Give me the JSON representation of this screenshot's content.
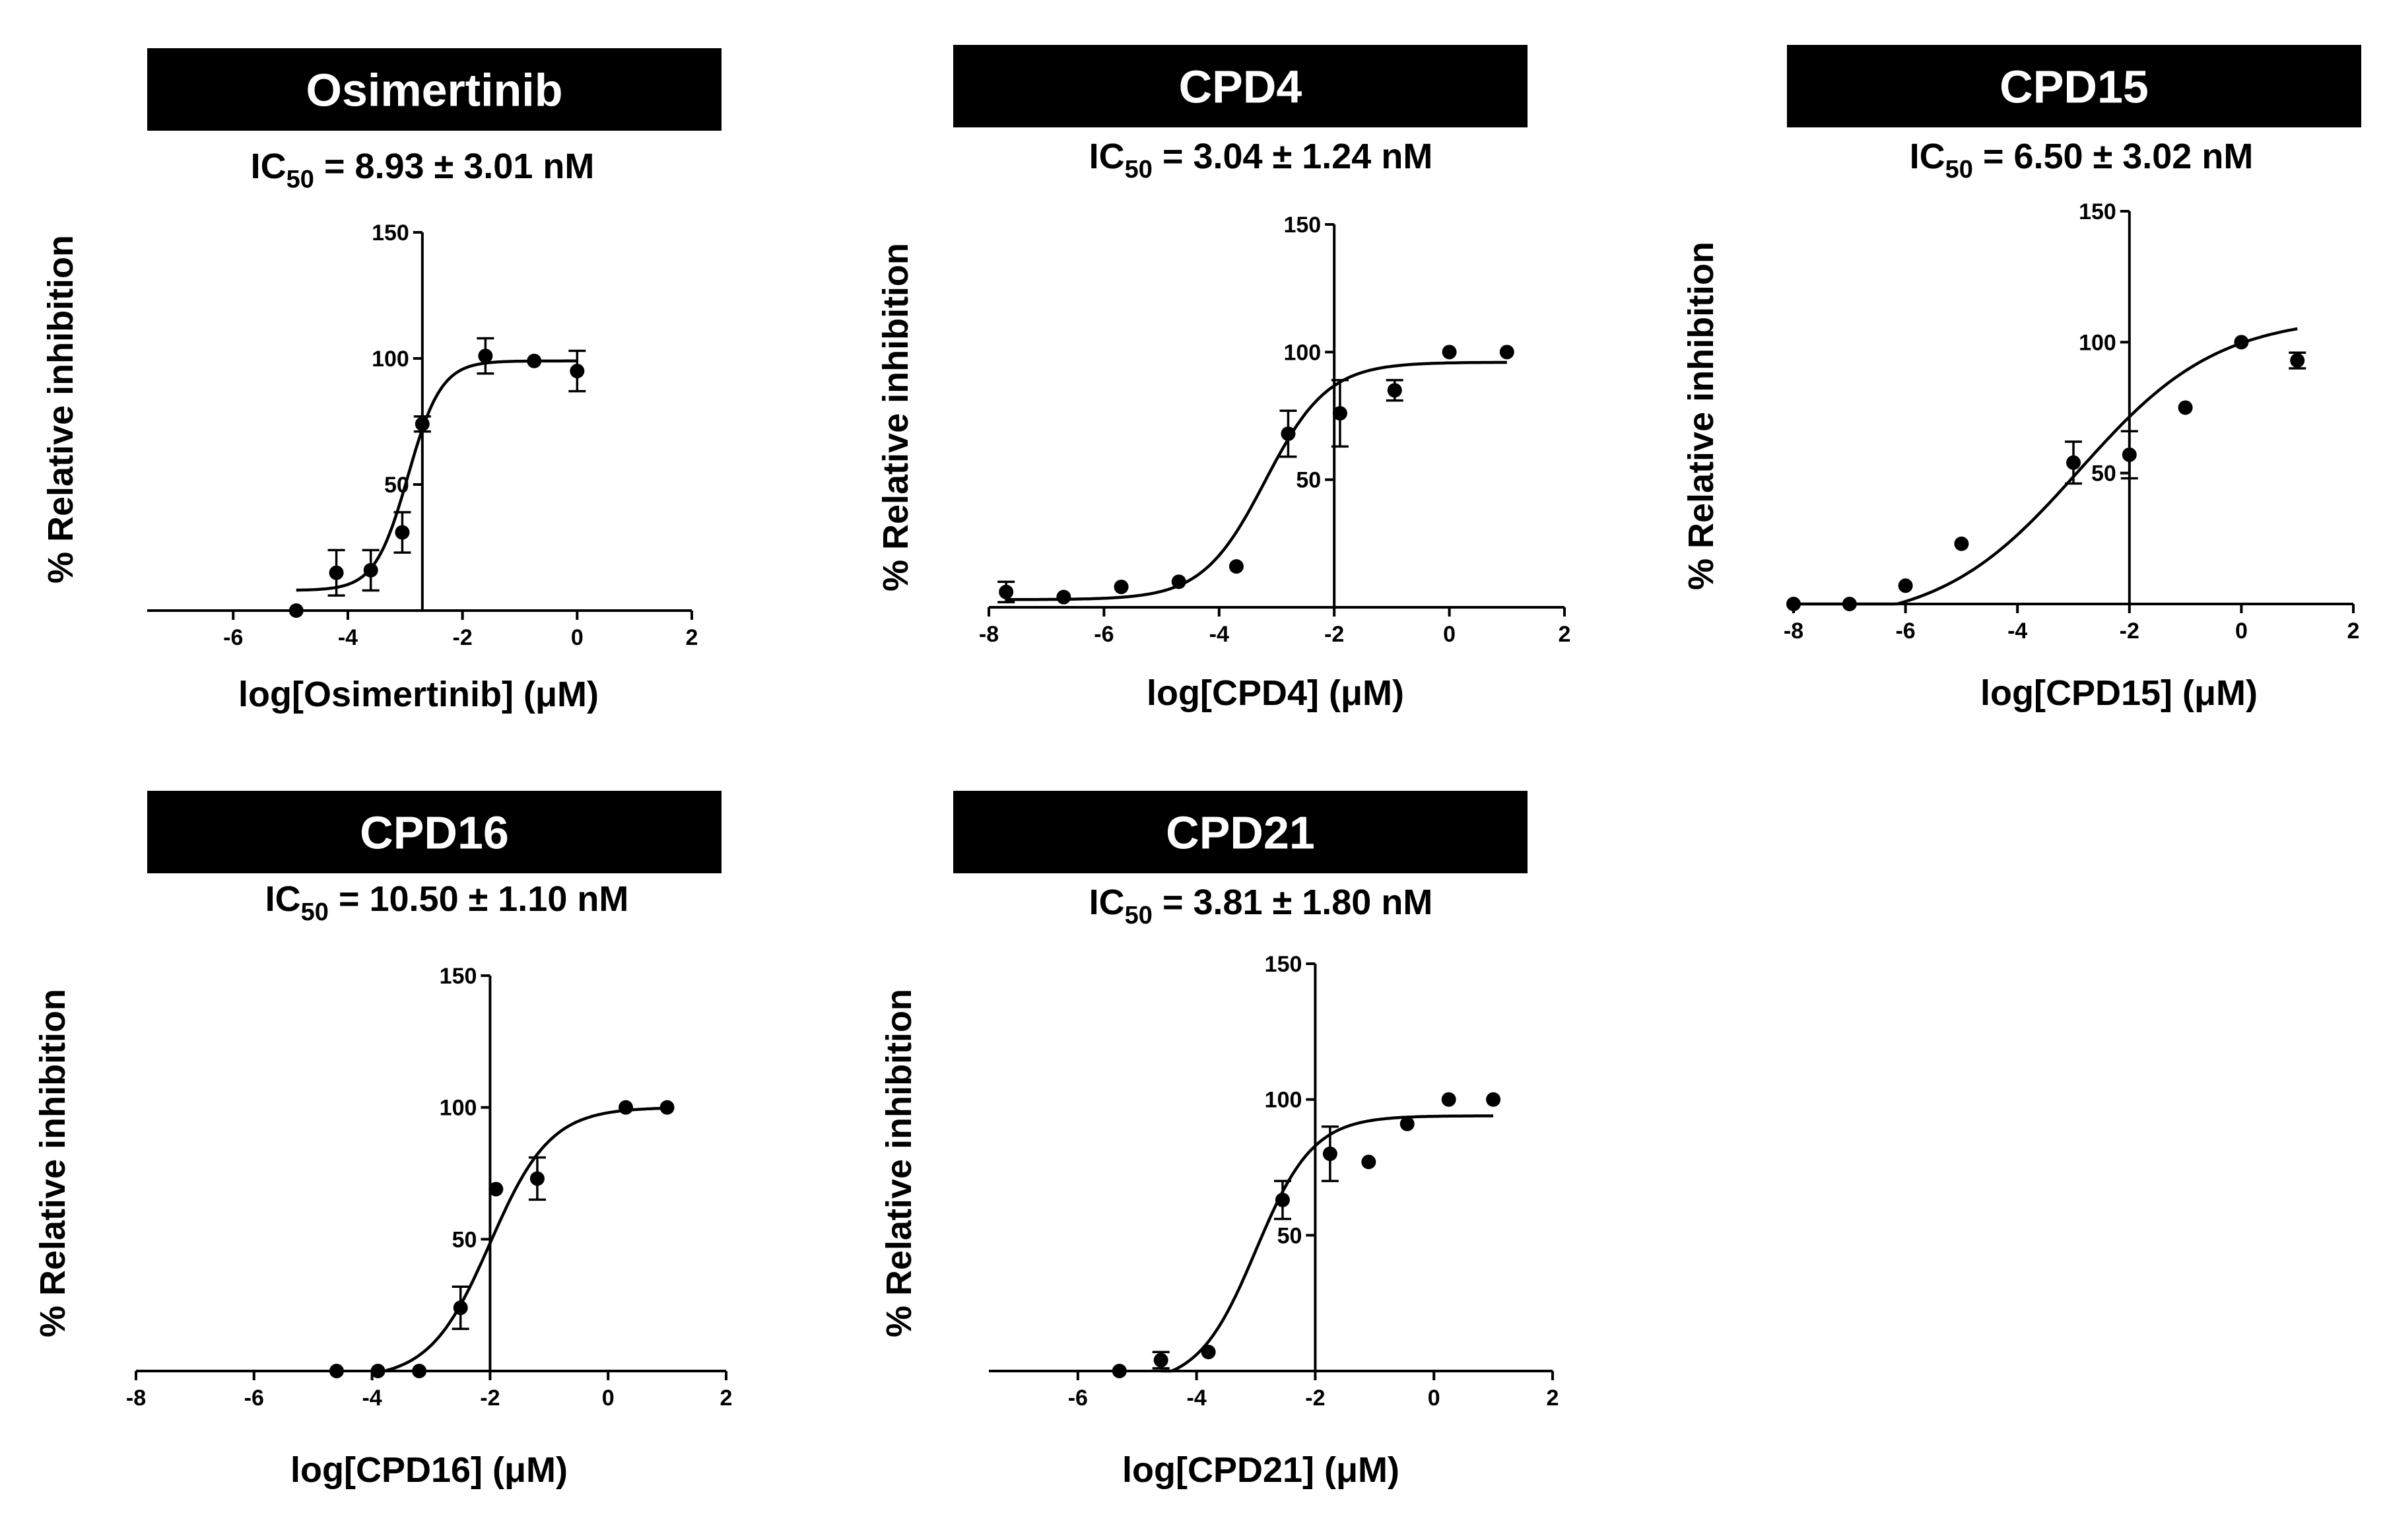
{
  "figure": {
    "colors": {
      "banner": "#000000",
      "banner_text": "#ffffff",
      "ink": "#000000"
    }
  },
  "chart_data": [
    {
      "type": "scatter",
      "title": "Osimertinib",
      "ic50": {
        "prefix": "IC",
        "sub": "50",
        "suffix": " = 8.93 ± 3.01 nM"
      },
      "xlabel": "log[Osimertinib] (μM)",
      "ylabel": "% Relative inhibition",
      "xlim": [
        -7.5,
        2
      ],
      "ylim": [
        0,
        150
      ],
      "x_ticks": [
        -6,
        -4,
        -2,
        0,
        2
      ],
      "y_ticks": [
        50,
        100,
        150
      ],
      "y_axis_at_x": -2.7,
      "fit": {
        "bottom": 8,
        "top": 99,
        "logEC50": -2.95,
        "hill": 1.5,
        "x_range": [
          -4.9,
          0
        ]
      },
      "points": [
        {
          "x": -4.9,
          "y": 0,
          "err": 0
        },
        {
          "x": -4.2,
          "y": 15,
          "err": 9
        },
        {
          "x": -3.6,
          "y": 16,
          "err": 8
        },
        {
          "x": -3.05,
          "y": 31,
          "err": 8
        },
        {
          "x": -2.7,
          "y": 74,
          "err": 3
        },
        {
          "x": -1.6,
          "y": 101,
          "err": 7
        },
        {
          "x": -0.75,
          "y": 99,
          "err": 0
        },
        {
          "x": 0,
          "y": 95,
          "err": 8
        }
      ]
    },
    {
      "type": "scatter",
      "title": "CPD4",
      "ic50": {
        "prefix": "IC",
        "sub": "50",
        "suffix": " = 3.04 ± 1.24 nM"
      },
      "xlabel": "log[CPD4] (μM)",
      "ylabel": "% Relative inhibition",
      "xlim": [
        -8,
        2
      ],
      "ylim": [
        0,
        150
      ],
      "x_ticks": [
        -8,
        -6,
        -4,
        -2,
        0,
        2
      ],
      "y_ticks": [
        50,
        100,
        150
      ],
      "y_axis_at_x": -2,
      "fit": {
        "bottom": 3,
        "top": 96,
        "logEC50": -3.2,
        "hill": 0.8,
        "x_range": [
          -7.7,
          1
        ]
      },
      "points": [
        {
          "x": -7.7,
          "y": 6,
          "err": 4
        },
        {
          "x": -6.7,
          "y": 4,
          "err": 0
        },
        {
          "x": -5.7,
          "y": 8,
          "err": 0
        },
        {
          "x": -4.7,
          "y": 10,
          "err": 0
        },
        {
          "x": -3.7,
          "y": 16,
          "err": 0
        },
        {
          "x": -2.8,
          "y": 68,
          "err": 9
        },
        {
          "x": -1.9,
          "y": 76,
          "err": 13
        },
        {
          "x": -0.95,
          "y": 85,
          "err": 4
        },
        {
          "x": 0,
          "y": 100,
          "err": 0
        },
        {
          "x": 1,
          "y": 100,
          "err": 0
        }
      ]
    },
    {
      "type": "scatter",
      "title": "CPD15",
      "ic50": {
        "prefix": "IC",
        "sub": "50",
        "suffix": " = 6.50 ± 3.02 nM"
      },
      "xlabel": "log[CPD15] (μM)",
      "ylabel": "% Relative inhibition",
      "xlim": [
        -8,
        2
      ],
      "ylim": [
        0,
        150
      ],
      "x_ticks": [
        -8,
        -6,
        -4,
        -2,
        0,
        2
      ],
      "y_ticks": [
        50,
        100,
        150
      ],
      "y_axis_at_x": -2,
      "fit": {
        "bottom": -8,
        "top": 110,
        "logEC50": -2.9,
        "hill": 0.35,
        "x_range": [
          -8,
          1
        ]
      },
      "points": [
        {
          "x": -8,
          "y": 0,
          "err": 0
        },
        {
          "x": -7,
          "y": 0,
          "err": 0
        },
        {
          "x": -6,
          "y": 7,
          "err": 0
        },
        {
          "x": -5,
          "y": 23,
          "err": 0
        },
        {
          "x": -3,
          "y": 54,
          "err": 8
        },
        {
          "x": -2,
          "y": 57,
          "err": 9
        },
        {
          "x": -1,
          "y": 75,
          "err": 0
        },
        {
          "x": 0,
          "y": 100,
          "err": 0
        },
        {
          "x": 1,
          "y": 93,
          "err": 3
        }
      ]
    },
    {
      "type": "scatter",
      "title": "CPD16",
      "ic50": {
        "prefix": "IC",
        "sub": "50",
        "suffix": " = 10.50 ± 1.10 nM"
      },
      "xlabel": "log[CPD16] (μM)",
      "ylabel": "% Relative inhibition",
      "xlim": [
        -8,
        2
      ],
      "ylim": [
        0,
        150
      ],
      "x_ticks": [
        -8,
        -6,
        -4,
        -2,
        0,
        2
      ],
      "y_ticks": [
        50,
        100,
        150
      ],
      "y_axis_at_x": -2,
      "fit": {
        "bottom": -3,
        "top": 100,
        "logEC50": -2.0,
        "hill": 0.85,
        "x_range": [
          -4,
          1
        ]
      },
      "points": [
        {
          "x": -4.6,
          "y": 0,
          "err": 0
        },
        {
          "x": -3.9,
          "y": 0,
          "err": 0
        },
        {
          "x": -3.2,
          "y": 0,
          "err": 0
        },
        {
          "x": -2.5,
          "y": 24,
          "err": 8
        },
        {
          "x": -1.9,
          "y": 69,
          "err": 0
        },
        {
          "x": -1.2,
          "y": 73,
          "err": 8
        },
        {
          "x": 0.3,
          "y": 100,
          "err": 0
        },
        {
          "x": 1,
          "y": 100,
          "err": 0
        }
      ]
    },
    {
      "type": "scatter",
      "title": "CPD21",
      "ic50": {
        "prefix": "IC",
        "sub": "50",
        "suffix": " = 3.81 ± 1.80 nM"
      },
      "xlabel": "log[CPD21] (μM)",
      "ylabel": "% Relative inhibition",
      "xlim": [
        -7.5,
        2
      ],
      "ylim": [
        0,
        150
      ],
      "x_ticks": [
        -6,
        -4,
        -2,
        0,
        2
      ],
      "y_ticks": [
        50,
        100,
        150
      ],
      "y_axis_at_x": -2,
      "fit": {
        "bottom": -5,
        "top": 94,
        "logEC50": -3.0,
        "hill": 0.9,
        "x_range": [
          -4.6,
          1
        ]
      },
      "points": [
        {
          "x": -5.3,
          "y": 0,
          "err": 0
        },
        {
          "x": -4.6,
          "y": 4,
          "err": 3
        },
        {
          "x": -3.8,
          "y": 7,
          "err": 0
        },
        {
          "x": -2.55,
          "y": 63,
          "err": 7
        },
        {
          "x": -1.75,
          "y": 80,
          "err": 10
        },
        {
          "x": -1.1,
          "y": 77,
          "err": 0
        },
        {
          "x": -0.45,
          "y": 91,
          "err": 0
        },
        {
          "x": 0.25,
          "y": 100,
          "err": 0
        },
        {
          "x": 1,
          "y": 100,
          "err": 0
        }
      ]
    }
  ]
}
